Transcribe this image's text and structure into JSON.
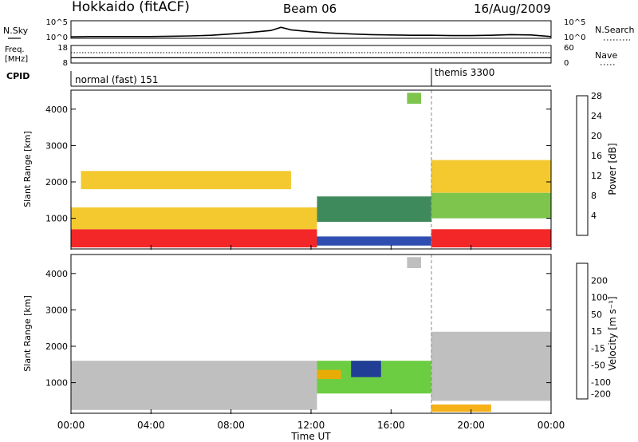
{
  "header": {
    "radar": "Hokkaido (fitACF)",
    "beam": "Beam 06",
    "date": "16/Aug/2009"
  },
  "nsky_panel": {
    "label": "N.Sky",
    "right_label": "N.Search",
    "left_ticks": [
      "10^5",
      "10^0"
    ],
    "right_ticks": [
      "10^5",
      "10^0"
    ]
  },
  "freq_panel": {
    "label_line1": "Freq.",
    "label_line2": "[MHz]",
    "right_label": "Nave",
    "left_ticks": [
      "18",
      "8"
    ],
    "right_ticks": [
      "60",
      "0"
    ]
  },
  "cpid_panel": {
    "label": "CPID",
    "programs": [
      {
        "name": "normal (fast) 151",
        "start_hour": 0.0
      },
      {
        "name": "themis 3300",
        "start_hour": 18.0
      }
    ]
  },
  "time_axis": {
    "label": "Time UT",
    "ticks": [
      "00:00",
      "04:00",
      "08:00",
      "12:00",
      "16:00",
      "20:00",
      "00:00"
    ]
  },
  "range_axis": {
    "label": "Slant Range [km]",
    "ticks": [
      "1000",
      "2000",
      "3000",
      "4000"
    ]
  },
  "power_colorbar": {
    "label": "Power [dB]",
    "ticks": [
      "4",
      "8",
      "12",
      "16",
      "20",
      "24",
      "28"
    ],
    "colors": [
      "#1a1aff",
      "#1a3aa8",
      "#2a7d4a",
      "#6fbf3a",
      "#f2c318",
      "#f57e0a",
      "#f21010"
    ]
  },
  "velocity_colorbar": {
    "label": "Velocity [m s⁻¹]",
    "ticks": [
      "200",
      "100",
      "50",
      "15",
      "-15",
      "-50",
      "-100",
      "-200"
    ],
    "colors": [
      "#1a2fa0",
      "#2a7f47",
      "#5cc82e",
      "#b8b8b8",
      "#b8b8b8",
      "#f5a800",
      "#f06a00",
      "#ee1010"
    ]
  },
  "chart_data": [
    {
      "type": "line",
      "title": "N.Sky",
      "ylabel": "N.Sky",
      "x_range_hours": [
        0,
        24
      ],
      "series": [
        {
          "name": "N.Sky",
          "x": [
            0,
            1,
            2,
            3,
            4,
            5,
            6,
            7,
            8,
            9,
            10,
            10.5,
            11,
            12,
            13,
            14,
            15,
            16,
            17,
            18,
            19,
            20,
            21,
            22,
            23,
            24
          ],
          "values": [
            0.2,
            0.3,
            0.3,
            0.3,
            0.3,
            0.4,
            0.5,
            0.7,
            1.1,
            1.6,
            2.2,
            3.2,
            2.4,
            1.8,
            1.4,
            1.1,
            0.9,
            0.8,
            0.7,
            0.7,
            0.6,
            0.6,
            0.7,
            0.9,
            0.8,
            0.3
          ]
        }
      ]
    },
    {
      "type": "line",
      "title": "Freq.",
      "ylabel": "Freq. [MHz]",
      "ylim": [
        8,
        18
      ],
      "x_range_hours": [
        0,
        24
      ],
      "series": [
        {
          "name": "Freq.",
          "x": [
            0,
            24
          ],
          "values": [
            10.8,
            10.8
          ]
        }
      ]
    },
    {
      "type": "heatmap",
      "title": "Power",
      "xlabel": "Time UT",
      "ylabel": "Slant Range [km]",
      "x_range_hours": [
        0,
        24
      ],
      "ylim": [
        180,
        4500
      ],
      "colorbar_label": "Power [dB]",
      "zlim": [
        0,
        30
      ],
      "regions": [
        {
          "t0": 0.0,
          "t1": 12.3,
          "r0": 200,
          "r1": 700,
          "value": 28
        },
        {
          "t0": 12.3,
          "t1": 18.0,
          "r0": 250,
          "r1": 500,
          "value": 8
        },
        {
          "t0": 18.0,
          "t1": 24.0,
          "r0": 200,
          "r1": 700,
          "value": 26
        },
        {
          "t0": 0.0,
          "t1": 12.3,
          "r0": 700,
          "r1": 1300,
          "value": 18
        },
        {
          "t0": 12.3,
          "t1": 18.0,
          "r0": 900,
          "r1": 1600,
          "value": 12
        },
        {
          "t0": 18.0,
          "t1": 24.0,
          "r0": 1000,
          "r1": 1700,
          "value": 14
        },
        {
          "t0": 0.5,
          "t1": 11.0,
          "r0": 1800,
          "r1": 2300,
          "value": 18
        },
        {
          "t0": 18.0,
          "t1": 24.0,
          "r0": 1700,
          "r1": 2600,
          "value": 20
        },
        {
          "t0": 16.8,
          "t1": 17.5,
          "r0": 4150,
          "r1": 4450,
          "value": 14
        }
      ]
    },
    {
      "type": "heatmap",
      "title": "Velocity",
      "xlabel": "Time UT",
      "ylabel": "Slant Range [km]",
      "x_range_hours": [
        0,
        24
      ],
      "ylim": [
        180,
        4500
      ],
      "colorbar_label": "Velocity [m s⁻¹]",
      "zlim": [
        -200,
        200
      ],
      "regions": [
        {
          "t0": 0.0,
          "t1": 12.3,
          "r0": 250,
          "r1": 1600,
          "value": 0
        },
        {
          "t0": 12.3,
          "t1": 18.0,
          "r0": 700,
          "r1": 1600,
          "value": 60
        },
        {
          "t0": 14.0,
          "t1": 15.5,
          "r0": 1150,
          "r1": 1600,
          "value": 150
        },
        {
          "t0": 12.3,
          "t1": 13.5,
          "r0": 1100,
          "r1": 1350,
          "value": -60
        },
        {
          "t0": 18.0,
          "t1": 24.0,
          "r0": 500,
          "r1": 2400,
          "value": 0
        },
        {
          "t0": 18.0,
          "t1": 21.0,
          "r0": 200,
          "r1": 400,
          "value": -70
        },
        {
          "t0": 16.8,
          "t1": 17.5,
          "r0": 4150,
          "r1": 4450,
          "value": 0
        }
      ]
    }
  ]
}
